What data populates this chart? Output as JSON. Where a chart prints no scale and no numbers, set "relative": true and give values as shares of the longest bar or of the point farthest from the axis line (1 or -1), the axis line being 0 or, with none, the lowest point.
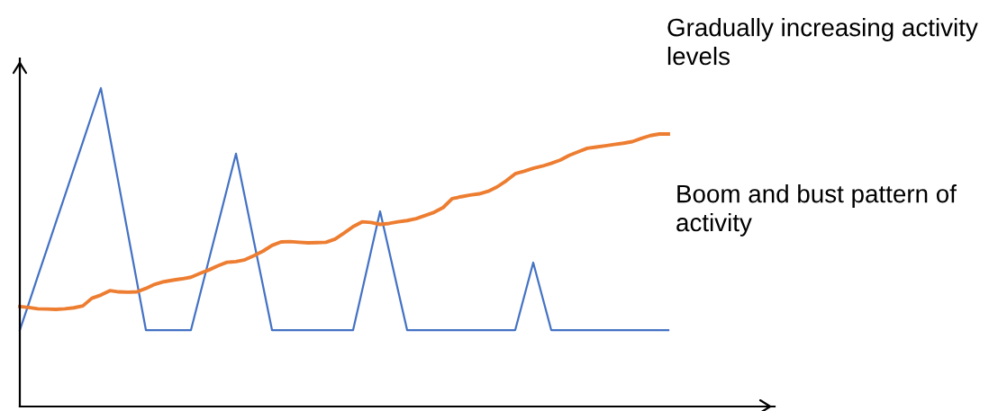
{
  "chart_data": {
    "type": "line",
    "relative": true,
    "legend": false,
    "marker": "none",
    "line_style": "solid",
    "categories": [
      null,
      null,
      null,
      null,
      null,
      null,
      null,
      null,
      null,
      null,
      null,
      null,
      null,
      null,
      null,
      null,
      null,
      null,
      null,
      null,
      null,
      null,
      null,
      null,
      null,
      null,
      null,
      null,
      null,
      null,
      null,
      null,
      null,
      null,
      null,
      null,
      null,
      null,
      null,
      null,
      null,
      null,
      null,
      null,
      null,
      null,
      null,
      null,
      null,
      null,
      null,
      null,
      null,
      null,
      null,
      null,
      null,
      null,
      null,
      null,
      null,
      null,
      null,
      null,
      null,
      null,
      null,
      null,
      null,
      null,
      null,
      null,
      null
    ],
    "series": [
      {
        "color": "#4472c4",
        "values": [
          0.24,
          0.324,
          0.409,
          0.493,
          0.578,
          0.662,
          0.747,
          0.831,
          0.916,
          1,
          0.848,
          0.696,
          0.544,
          0.392,
          0.24,
          0.24,
          0.24,
          0.24,
          0.24,
          0.24,
          0.351,
          0.462,
          0.572,
          0.683,
          0.794,
          0.656,
          0.517,
          0.379,
          0.24,
          0.24,
          0.24,
          0.24,
          0.24,
          0.24,
          0.24,
          0.24,
          0.24,
          0.24,
          0.364,
          0.489,
          0.613,
          0.489,
          0.364,
          0.24,
          0.24,
          0.24,
          0.24,
          0.24,
          0.24,
          0.24,
          0.24,
          0.24,
          0.24,
          0.24,
          0.24,
          0.24,
          0.346,
          0.452,
          0.346,
          0.24,
          0.24,
          0.24,
          0.24,
          0.24,
          0.24,
          0.24,
          0.24,
          0.24,
          0.24,
          0.24,
          0.24,
          0.24,
          0.24
        ]
      },
      {
        "color": "#ed7d31",
        "values": [
          0.314,
          0.311,
          0.307,
          0.306,
          0.305,
          0.307,
          0.31,
          0.316,
          0.34,
          0.35,
          0.364,
          0.36,
          0.359,
          0.36,
          0.371,
          0.384,
          0.392,
          0.397,
          0.401,
          0.406,
          0.418,
          0.429,
          0.442,
          0.453,
          0.455,
          0.461,
          0.474,
          0.488,
          0.506,
          0.517,
          0.518,
          0.516,
          0.514,
          0.515,
          0.516,
          0.526,
          0.545,
          0.565,
          0.58,
          0.578,
          0.572,
          0.575,
          0.58,
          0.584,
          0.59,
          0.6,
          0.61,
          0.625,
          0.653,
          0.659,
          0.664,
          0.668,
          0.676,
          0.69,
          0.709,
          0.731,
          0.739,
          0.748,
          0.755,
          0.764,
          0.774,
          0.789,
          0.8,
          0.811,
          0.815,
          0.819,
          0.823,
          0.827,
          0.832,
          0.842,
          0.851,
          0.856,
          0.856
        ]
      }
    ],
    "annotations": [
      "Gradually increasing activity levels",
      "Boom and bust pattern of activity"
    ]
  }
}
